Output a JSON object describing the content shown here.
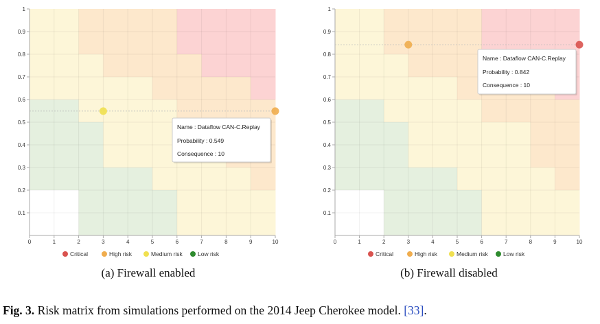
{
  "colors": {
    "critical": "#d9534f",
    "high": "#f0ad4e",
    "medium": "#f0e050",
    "low": "#2e8b2e",
    "cell_critical": "#fcd3d3",
    "cell_high": "#fde8cc",
    "cell_medium": "#fdf6d8",
    "cell_low": "#e5f0df",
    "cell_none": "#ffffff"
  },
  "caption": {
    "label": "Fig. 3.",
    "text": " Risk matrix from simulations performed on the 2014 Jeep Cherokee model. ",
    "ref": "[33]",
    "end": "."
  },
  "chart_data": [
    {
      "type": "heatmap",
      "subcaption": "(a) Firewall enabled",
      "xlim": [
        0,
        10
      ],
      "ylim": [
        0,
        1
      ],
      "x_ticks": [
        "0",
        "1",
        "2",
        "3",
        "4",
        "5",
        "6",
        "7",
        "8",
        "9",
        "10"
      ],
      "y_ticks": [
        "0.1",
        "0.2",
        "0.3",
        "0.4",
        "0.5",
        "0.6",
        "0.7",
        "0.8",
        "0.9",
        "1"
      ],
      "legend": [
        "Critical",
        "High risk",
        "Medium risk",
        "Low risk"
      ],
      "legend_placement": "bottom",
      "grid": false,
      "zones": [
        [
          "medium",
          "medium",
          "high",
          "high",
          "high",
          "high",
          "critical",
          "critical",
          "critical",
          "critical"
        ],
        [
          "medium",
          "medium",
          "high",
          "high",
          "high",
          "high",
          "critical",
          "critical",
          "critical",
          "critical"
        ],
        [
          "medium",
          "medium",
          "medium",
          "high",
          "high",
          "high",
          "high",
          "critical",
          "critical",
          "critical"
        ],
        [
          "medium",
          "medium",
          "medium",
          "medium",
          "medium",
          "high",
          "high",
          "high",
          "high",
          "critical"
        ],
        [
          "low",
          "low",
          "medium",
          "medium",
          "medium",
          "medium",
          "high",
          "high",
          "high",
          "high"
        ],
        [
          "low",
          "low",
          "low",
          "medium",
          "medium",
          "medium",
          "medium",
          "medium",
          "high",
          "high"
        ],
        [
          "low",
          "low",
          "low",
          "medium",
          "medium",
          "medium",
          "medium",
          "medium",
          "high",
          "high"
        ],
        [
          "low",
          "low",
          "low",
          "low",
          "low",
          "medium",
          "medium",
          "medium",
          "medium",
          "high"
        ],
        [
          "none",
          "none",
          "low",
          "low",
          "low",
          "low",
          "medium",
          "medium",
          "medium",
          "medium"
        ],
        [
          "none",
          "none",
          "low",
          "low",
          "low",
          "low",
          "medium",
          "medium",
          "medium",
          "medium"
        ]
      ],
      "points": [
        {
          "x": 3,
          "y": 0.549,
          "level": "medium"
        },
        {
          "x": 10,
          "y": 0.549,
          "level": "high"
        }
      ],
      "tooltip": {
        "name": "Name : Dataflow CAN-C.Replay",
        "probability": "Probability : 0.549",
        "consequence": "Consequence : 10"
      }
    },
    {
      "type": "heatmap",
      "subcaption": "(b) Firewall disabled",
      "xlim": [
        0,
        10
      ],
      "ylim": [
        0,
        1
      ],
      "x_ticks": [
        "0",
        "1",
        "2",
        "3",
        "4",
        "5",
        "6",
        "7",
        "8",
        "9",
        "10"
      ],
      "y_ticks": [
        "0.1",
        "0.2",
        "0.3",
        "0.4",
        "0.5",
        "0.6",
        "0.7",
        "0.8",
        "0.9",
        "1"
      ],
      "legend": [
        "Critical",
        "High risk",
        "Medium risk",
        "Low risk"
      ],
      "legend_placement": "bottom",
      "grid": false,
      "zones": [
        [
          "medium",
          "medium",
          "high",
          "high",
          "high",
          "high",
          "critical",
          "critical",
          "critical",
          "critical"
        ],
        [
          "medium",
          "medium",
          "high",
          "high",
          "high",
          "high",
          "critical",
          "critical",
          "critical",
          "critical"
        ],
        [
          "medium",
          "medium",
          "medium",
          "high",
          "high",
          "high",
          "high",
          "critical",
          "critical",
          "critical"
        ],
        [
          "medium",
          "medium",
          "medium",
          "medium",
          "medium",
          "high",
          "high",
          "high",
          "high",
          "critical"
        ],
        [
          "low",
          "low",
          "medium",
          "medium",
          "medium",
          "medium",
          "high",
          "high",
          "high",
          "high"
        ],
        [
          "low",
          "low",
          "low",
          "medium",
          "medium",
          "medium",
          "medium",
          "medium",
          "high",
          "high"
        ],
        [
          "low",
          "low",
          "low",
          "medium",
          "medium",
          "medium",
          "medium",
          "medium",
          "high",
          "high"
        ],
        [
          "low",
          "low",
          "low",
          "low",
          "low",
          "medium",
          "medium",
          "medium",
          "medium",
          "high"
        ],
        [
          "none",
          "none",
          "low",
          "low",
          "low",
          "low",
          "medium",
          "medium",
          "medium",
          "medium"
        ],
        [
          "none",
          "none",
          "low",
          "low",
          "low",
          "low",
          "medium",
          "medium",
          "medium",
          "medium"
        ]
      ],
      "points": [
        {
          "x": 3,
          "y": 0.842,
          "level": "high"
        },
        {
          "x": 10,
          "y": 0.842,
          "level": "critical"
        }
      ],
      "tooltip": {
        "name": "Name : Dataflow CAN-C.Replay",
        "probability": "Probability : 0.842",
        "consequence": "Consequence : 10"
      }
    }
  ]
}
